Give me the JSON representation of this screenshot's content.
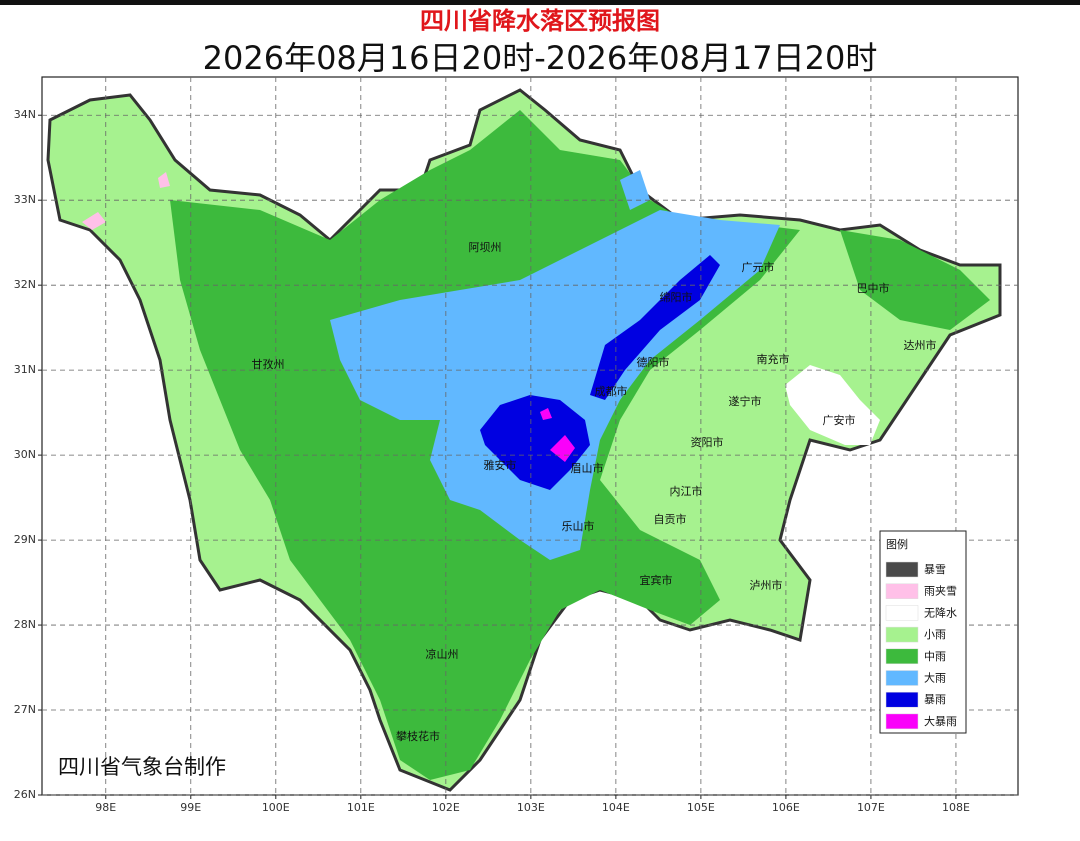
{
  "title": "四川省降水落区预报图",
  "subtitle": "2026年08月16日20时-2026年08月17日20时",
  "credit": "四川省气象台制作",
  "map": {
    "lon_range": [
      97.25,
      108.73
    ],
    "lat_range": [
      26,
      34.45
    ],
    "lon_ticks": [
      {
        "value": 98,
        "label": "98E"
      },
      {
        "value": 99,
        "label": "99E"
      },
      {
        "value": 100,
        "label": "100E"
      },
      {
        "value": 101,
        "label": "101E"
      },
      {
        "value": 102,
        "label": "102E"
      },
      {
        "value": 103,
        "label": "103E"
      },
      {
        "value": 104,
        "label": "104E"
      },
      {
        "value": 105,
        "label": "105E"
      },
      {
        "value": 106,
        "label": "106E"
      },
      {
        "value": 107,
        "label": "107E"
      },
      {
        "value": 108,
        "label": "108E"
      }
    ],
    "lat_ticks": [
      {
        "value": 26,
        "label": "26N"
      },
      {
        "value": 27,
        "label": "27N"
      },
      {
        "value": 28,
        "label": "28N"
      },
      {
        "value": 29,
        "label": "29N"
      },
      {
        "value": 30,
        "label": "30N"
      },
      {
        "value": 31,
        "label": "31N"
      },
      {
        "value": 32,
        "label": "32N"
      },
      {
        "value": 33,
        "label": "33N"
      },
      {
        "value": 34,
        "label": "34N"
      }
    ],
    "cities": [
      "阿坝州",
      "甘孜州",
      "广元市",
      "巴中市",
      "绵阳市",
      "德阳市",
      "成都市",
      "达州市",
      "南充市",
      "遂宁市",
      "广安市",
      "雅安市",
      "眉山市",
      "资阳市",
      "内江市",
      "自贡市",
      "乐山市",
      "宜宾市",
      "泸州市",
      "凉山州",
      "攀枝花市"
    ]
  },
  "legend": {
    "title": "图例",
    "items": [
      {
        "label": "暴雪",
        "color": "#4a4a4a"
      },
      {
        "label": "雨夹雪",
        "color": "#ffc0e8"
      },
      {
        "label": "无降水",
        "color": "#ffffff"
      },
      {
        "label": "小雨",
        "color": "#a6f28f"
      },
      {
        "label": "中雨",
        "color": "#3dba3d"
      },
      {
        "label": "大雨",
        "color": "#61b8ff"
      },
      {
        "label": "暴雨",
        "color": "#0000e1"
      },
      {
        "label": "大暴雨",
        "color": "#fa00fa"
      }
    ]
  }
}
